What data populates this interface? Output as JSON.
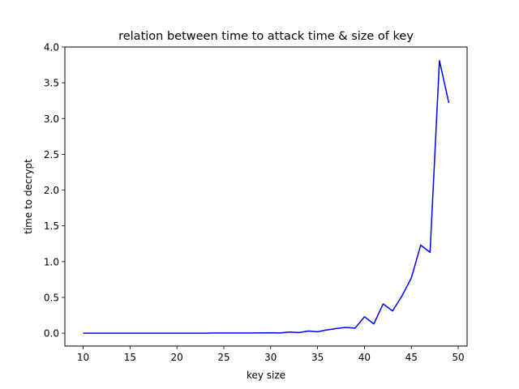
{
  "chart_data": {
    "type": "line",
    "title": "relation between time to attack time & size of key",
    "xlabel": "key size",
    "ylabel": "time to decrypt",
    "xlim": [
      8.05,
      50.95
    ],
    "ylim": [
      -0.18,
      4.0
    ],
    "xticks": [
      10,
      15,
      20,
      25,
      30,
      35,
      40,
      45,
      50
    ],
    "yticks": [
      0.0,
      0.5,
      1.0,
      1.5,
      2.0,
      2.5,
      3.0,
      3.5,
      4.0
    ],
    "xtick_labels": [
      "10",
      "15",
      "20",
      "25",
      "30",
      "35",
      "40",
      "45",
      "50"
    ],
    "ytick_labels": [
      "0.0",
      "0.5",
      "1.0",
      "1.5",
      "2.0",
      "2.5",
      "3.0",
      "3.5",
      "4.0"
    ],
    "grid": false,
    "series": [
      {
        "color": "#0000ff",
        "x": [
          10,
          11,
          12,
          13,
          14,
          15,
          16,
          17,
          18,
          19,
          20,
          21,
          22,
          23,
          24,
          25,
          26,
          27,
          28,
          29,
          30,
          31,
          32,
          33,
          34,
          35,
          36,
          37,
          38,
          39,
          40,
          41,
          42,
          43,
          44,
          45,
          46,
          47,
          48,
          49
        ],
        "y": [
          0.0,
          0.0,
          0.0,
          0.0,
          0.0,
          0.0,
          0.0,
          0.0,
          0.0,
          0.0,
          0.0,
          0.0,
          0.0,
          0.0,
          0.002,
          0.002,
          0.003,
          0.002,
          0.003,
          0.004,
          0.005,
          0.003,
          0.015,
          0.008,
          0.03,
          0.02,
          0.045,
          0.065,
          0.08,
          0.07,
          0.23,
          0.13,
          0.41,
          0.31,
          0.52,
          0.77,
          1.23,
          1.13,
          3.81,
          3.22
        ]
      }
    ]
  }
}
